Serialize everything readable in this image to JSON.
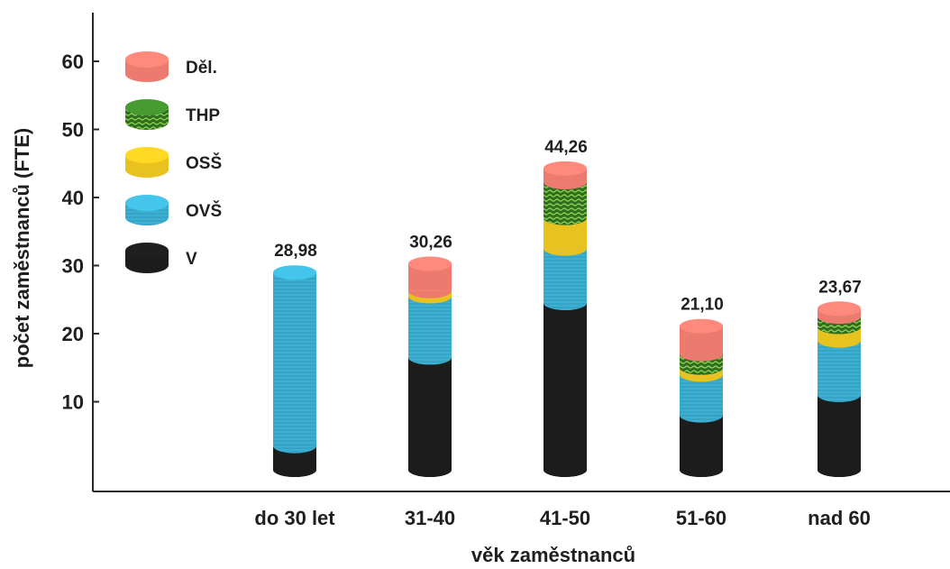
{
  "chart_data": {
    "type": "bar",
    "stacked": true,
    "title": "",
    "xlabel": "věk zaměstnanců",
    "ylabel": "počet zaměstnanců (FTE)",
    "ylim": [
      0,
      70
    ],
    "yticks": [
      10,
      20,
      30,
      40,
      50,
      60
    ],
    "categories": [
      "do 30 let",
      "31-40",
      "41-50",
      "51-60",
      "nad 60"
    ],
    "totals": [
      "28,98",
      "30,26",
      "44,26",
      "21,10",
      "23,67"
    ],
    "legend_position": "top-left",
    "series": [
      {
        "name": "V",
        "color": "#1c1c1c",
        "values": [
          3.5,
          16.5,
          24.5,
          8.0,
          11.0
        ]
      },
      {
        "name": "OVŠ",
        "color": "#3db0d2",
        "values": [
          25.48,
          9.0,
          8.0,
          6.0,
          8.0
        ]
      },
      {
        "name": "OSŠ",
        "color": "#e8c21e",
        "values": [
          0,
          0.76,
          4.5,
          1.0,
          2.0
        ]
      },
      {
        "name": "THP",
        "color": "#3f8a2c",
        "values": [
          0,
          0,
          5.26,
          2.0,
          1.5
        ]
      },
      {
        "name": "Děl.",
        "color": "#ec7a6e",
        "values": [
          0,
          4.0,
          2.0,
          4.1,
          1.17
        ]
      }
    ]
  }
}
